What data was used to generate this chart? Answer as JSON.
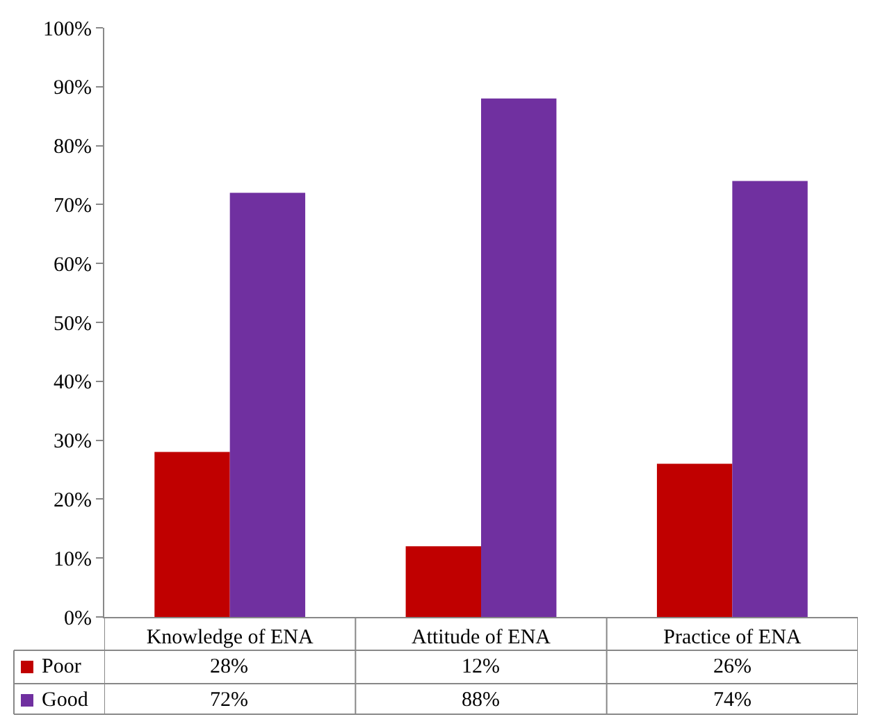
{
  "chart_data": {
    "type": "bar",
    "categories": [
      "Knowledge of ENA",
      "Attitude of ENA",
      "Practice of ENA"
    ],
    "series": [
      {
        "name": "Poor",
        "color": "#c00000",
        "values": [
          28,
          12,
          26
        ]
      },
      {
        "name": "Good",
        "color": "#7030a0",
        "values": [
          72,
          88,
          74
        ]
      }
    ],
    "ylim": [
      0,
      100
    ],
    "yticks": [
      {
        "value": 0,
        "label": "0%"
      },
      {
        "value": 10,
        "label": "10%"
      },
      {
        "value": 20,
        "label": "20%"
      },
      {
        "value": 30,
        "label": "30%"
      },
      {
        "value": 40,
        "label": "40%"
      },
      {
        "value": 50,
        "label": "50%"
      },
      {
        "value": 60,
        "label": "60%"
      },
      {
        "value": 70,
        "label": "70%"
      },
      {
        "value": 80,
        "label": "80%"
      },
      {
        "value": 90,
        "label": "90%"
      },
      {
        "value": 100,
        "label": "100%"
      }
    ],
    "value_labels": [
      [
        "28%",
        "12%",
        "26%"
      ],
      [
        "72%",
        "88%",
        "74%"
      ]
    ],
    "legend": "bottom"
  }
}
